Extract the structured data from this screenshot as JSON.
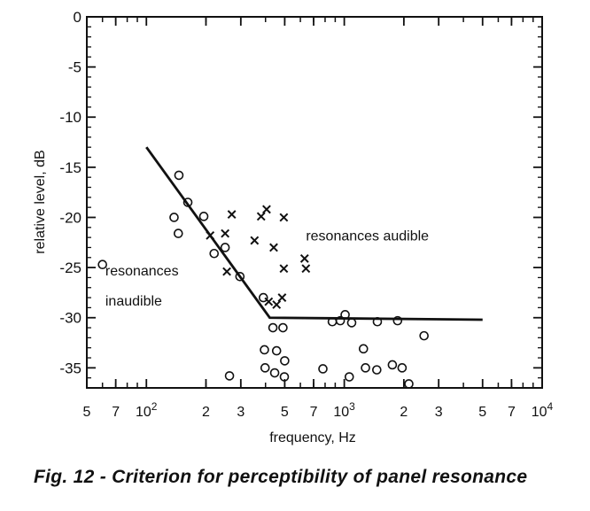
{
  "caption": "Fig. 12 - Criterion for perceptibility of panel resonance",
  "chart_data": {
    "type": "scatter",
    "xlabel": "frequency, Hz",
    "ylabel": "relative level, dB",
    "xscale": "log",
    "xlim": [
      50,
      10000
    ],
    "ylim": [
      -37,
      0
    ],
    "x_ticks": [
      {
        "value": 50,
        "label": "5"
      },
      {
        "value": 70,
        "label": "7"
      },
      {
        "value": 100,
        "label": "10",
        "sup": "2"
      },
      {
        "value": 200,
        "label": "2"
      },
      {
        "value": 300,
        "label": "3"
      },
      {
        "value": 500,
        "label": "5"
      },
      {
        "value": 700,
        "label": "7"
      },
      {
        "value": 1000,
        "label": "10",
        "sup": "3"
      },
      {
        "value": 2000,
        "label": "2"
      },
      {
        "value": 3000,
        "label": "3"
      },
      {
        "value": 5000,
        "label": "5"
      },
      {
        "value": 7000,
        "label": "7"
      },
      {
        "value": 10000,
        "label": "10",
        "sup": "4"
      }
    ],
    "y_ticks": [
      0,
      -5,
      -10,
      -15,
      -20,
      -25,
      -30,
      -35
    ],
    "annotations": [
      {
        "text": "resonances audible",
        "x": 640,
        "y": -22.3
      },
      {
        "text": "resonances",
        "x": 62,
        "y": -25.8
      },
      {
        "text": "inaudible",
        "x": 62,
        "y": -28.8
      }
    ],
    "criterion_line": {
      "x": [
        100,
        420,
        5000
      ],
      "y": [
        -13,
        -30,
        -30.2
      ]
    },
    "series": [
      {
        "marker": "circle",
        "points": [
          [
            60,
            -24.7
          ],
          [
            138,
            -20
          ],
          [
            146,
            -15.8
          ],
          [
            145,
            -21.6
          ],
          [
            162,
            -18.5
          ],
          [
            195,
            -19.9
          ],
          [
            220,
            -23.6
          ],
          [
            250,
            -23.0
          ],
          [
            263,
            -35.8
          ],
          [
            297,
            -25.9
          ],
          [
            390,
            -28.0
          ],
          [
            395,
            -33.2
          ],
          [
            398,
            -35.0
          ],
          [
            436,
            -31.0
          ],
          [
            445,
            -35.5
          ],
          [
            455,
            -33.3
          ],
          [
            490,
            -31.0
          ],
          [
            498,
            -35.9
          ],
          [
            500,
            -34.3
          ],
          [
            780,
            -35.1
          ],
          [
            870,
            -30.4
          ],
          [
            955,
            -30.3
          ],
          [
            1010,
            -29.7
          ],
          [
            1060,
            -35.9
          ],
          [
            1090,
            -30.5
          ],
          [
            1250,
            -33.1
          ],
          [
            1280,
            -35.0
          ],
          [
            1460,
            -35.2
          ],
          [
            1470,
            -30.4
          ],
          [
            1750,
            -34.7
          ],
          [
            1860,
            -30.3
          ],
          [
            1960,
            -35.0
          ],
          [
            2120,
            -36.6
          ],
          [
            2530,
            -31.8
          ]
        ]
      },
      {
        "marker": "x",
        "points": [
          [
            210,
            -21.8
          ],
          [
            250,
            -21.6
          ],
          [
            255,
            -25.4
          ],
          [
            270,
            -19.7
          ],
          [
            352,
            -22.3
          ],
          [
            380,
            -19.9
          ],
          [
            405,
            -19.2
          ],
          [
            415,
            -28.4
          ],
          [
            440,
            -23.0
          ],
          [
            455,
            -28.7
          ],
          [
            485,
            -28.0
          ],
          [
            495,
            -20.0
          ],
          [
            495,
            -25.1
          ],
          [
            630,
            -24.1
          ],
          [
            640,
            -25.1
          ]
        ]
      }
    ]
  }
}
